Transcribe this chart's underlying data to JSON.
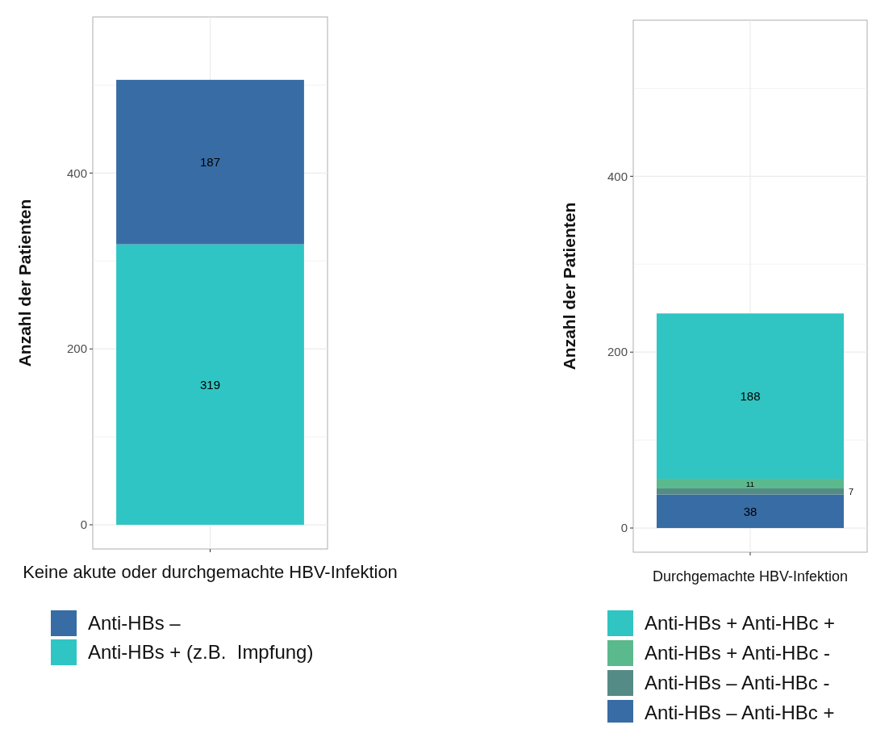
{
  "chart_data": [
    {
      "type": "bar",
      "stacked": true,
      "categories": [
        "Keine akute oder durchgemachte HBV-Infektion"
      ],
      "ylabel": "Anzahl der Patienten",
      "ylim": [
        -27.5,
        577.5
      ],
      "yticks": [
        0,
        {
          "value": 100,
          "label": null
        },
        200,
        {
          "value": 300,
          "label": null
        },
        400,
        {
          "value": 500,
          "label": null
        }
      ],
      "grid": true,
      "legend": "bottom",
      "data_labels": true,
      "series": [
        {
          "name": "Anti-HBs + (z.B.  Impfung)",
          "color": "#2fc5c4",
          "values": [
            319
          ]
        },
        {
          "name": "Anti-HBs –",
          "color": "#386ca4",
          "values": [
            187
          ]
        }
      ]
    },
    {
      "type": "bar",
      "stacked": true,
      "categories": [
        "Durchgemachte HBV-Infektion"
      ],
      "ylabel": "Anzahl der Patienten",
      "ylim": [
        -27.5,
        577.5
      ],
      "yticks": [
        0,
        {
          "value": 100,
          "label": null
        },
        200,
        {
          "value": 300,
          "label": null
        },
        400,
        {
          "value": 500,
          "label": null
        }
      ],
      "grid": true,
      "legend": "bottom",
      "data_labels": true,
      "series": [
        {
          "name": "Anti-HBs – Anti-HBc +",
          "color": "#386ca4",
          "values": [
            38
          ]
        },
        {
          "name": "Anti-HBs – Anti-HBc -",
          "color": "#558b86",
          "values": [
            7
          ]
        },
        {
          "name": "Anti-HBs + Anti-HBc -",
          "color": "#5bb98e",
          "values": [
            11
          ]
        },
        {
          "name": "Anti-HBs + Anti-HBc +",
          "color": "#30c4c2",
          "values": [
            188
          ]
        }
      ]
    }
  ]
}
